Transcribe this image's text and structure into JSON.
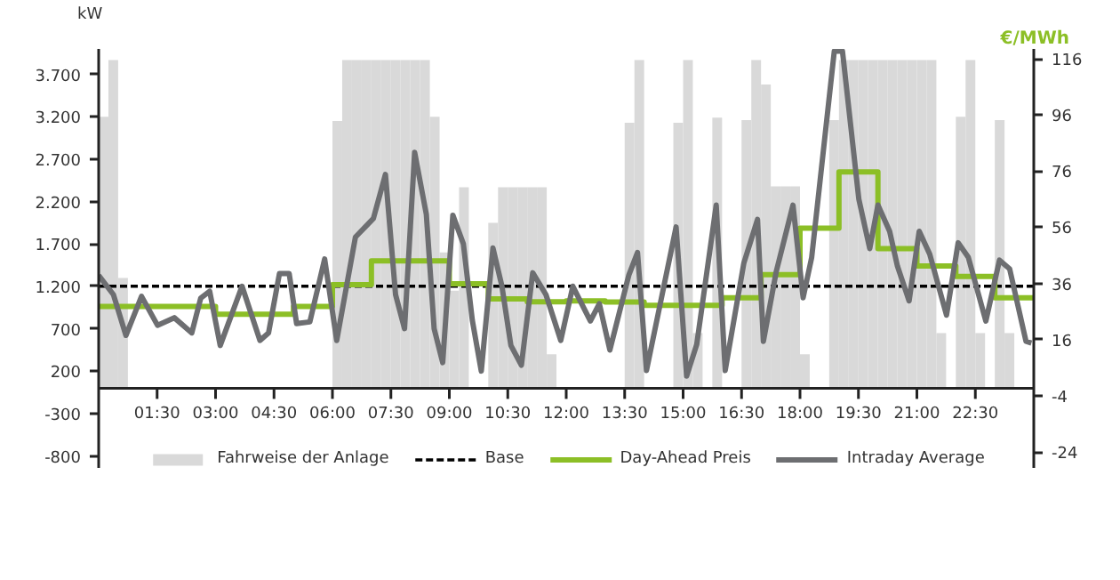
{
  "chart_data": {
    "type": "line",
    "ylabel": "kW",
    "y2label": "€/MWh",
    "xlim": [
      0,
      24
    ],
    "xticks": [
      {
        "value": 1.5,
        "label": "01:30"
      },
      {
        "value": 3,
        "label": "03:00"
      },
      {
        "value": 4.5,
        "label": "04:30"
      },
      {
        "value": 6,
        "label": "06:00"
      },
      {
        "value": 7.5,
        "label": "07:30"
      },
      {
        "value": 9,
        "label": "09:00"
      },
      {
        "value": 10.5,
        "label": "10:30"
      },
      {
        "value": 12,
        "label": "12:00"
      },
      {
        "value": 13.5,
        "label": "13:30"
      },
      {
        "value": 15,
        "label": "15:00"
      },
      {
        "value": 16.5,
        "label": "16:30"
      },
      {
        "value": 18,
        "label": "18:00"
      },
      {
        "value": 19.5,
        "label": "19:30"
      },
      {
        "value": 21,
        "label": "21:00"
      },
      {
        "value": 22.5,
        "label": "22:30"
      }
    ],
    "ylim": [
      -950,
      4000
    ],
    "yticks": [
      {
        "value": -800,
        "label": "-800"
      },
      {
        "value": -300,
        "label": "-300"
      },
      {
        "value": 200,
        "label": "200"
      },
      {
        "value": 700,
        "label": "700"
      },
      {
        "value": 1200,
        "label": "1.200"
      },
      {
        "value": 1700,
        "label": "1.700"
      },
      {
        "value": 2200,
        "label": "2.200"
      },
      {
        "value": 2700,
        "label": "2.700"
      },
      {
        "value": 3200,
        "label": "3.200"
      },
      {
        "value": 3700,
        "label": "3.700"
      }
    ],
    "y2lim": [
      -30,
      119.5
    ],
    "y2ticks": [
      -24,
      -4,
      16,
      36,
      56,
      76,
      96,
      116
    ],
    "grid": false,
    "legend": "bottom",
    "series": [
      {
        "name": "Fahrweise der Anlage",
        "type": "bar",
        "color": "#d9d9d9",
        "x": [
          0.125,
          0.375,
          0.625,
          6.125,
          6.375,
          6.625,
          6.875,
          7.125,
          7.375,
          7.625,
          7.875,
          8.125,
          8.375,
          8.625,
          8.875,
          9.125,
          9.375,
          10.125,
          10.375,
          10.625,
          10.875,
          11.125,
          11.375,
          11.625,
          13.625,
          13.875,
          14.875,
          15.125,
          15.375,
          15.875,
          16.625,
          16.875,
          17.125,
          17.375,
          17.625,
          17.875,
          18.125,
          18.875,
          19.125,
          19.375,
          19.625,
          19.875,
          20.125,
          20.375,
          20.625,
          20.875,
          21.125,
          21.375,
          21.625,
          22.125,
          22.375,
          22.625,
          23.125,
          23.375
        ],
        "values": [
          3200,
          3870,
          1300,
          3150,
          3870,
          3870,
          3870,
          3870,
          3870,
          3870,
          3870,
          3870,
          3870,
          3200,
          1600,
          1150,
          2370,
          1950,
          2370,
          2370,
          2370,
          2370,
          2370,
          400,
          3130,
          3870,
          3130,
          3870,
          650,
          3190,
          3160,
          3870,
          3580,
          2380,
          2380,
          2380,
          400,
          3160,
          3870,
          3870,
          3870,
          3870,
          3870,
          3870,
          3870,
          3870,
          3870,
          3870,
          650,
          3200,
          3870,
          650,
          3160,
          650
        ]
      },
      {
        "name": "Base",
        "type": "line",
        "axis": "y2",
        "color": "#000000",
        "line_style": "dashed",
        "x": [
          0,
          24
        ],
        "values": [
          35,
          35
        ]
      },
      {
        "name": "Day-Ahead Preis",
        "type": "step",
        "axis": "y2",
        "color": "#8cbf26",
        "x": [
          0,
          1,
          2,
          3,
          4,
          5,
          6,
          7,
          8,
          9,
          10,
          11,
          12,
          13,
          14,
          15,
          16,
          17,
          18,
          19,
          20,
          21,
          22,
          23,
          24
        ],
        "values": [
          27.8,
          27.8,
          27.8,
          25.0,
          25.0,
          27.8,
          35.6,
          44.0,
          44.0,
          35.9,
          30.5,
          29.5,
          29.8,
          29.4,
          28.2,
          28.2,
          30.9,
          39.1,
          55.7,
          75.7,
          48.4,
          42.2,
          38.5,
          30.9,
          30.9
        ]
      },
      {
        "name": "Intraday Average",
        "axis": "y2",
        "color": "#6d6e71",
        "x": [
          0.0,
          0.38,
          0.7,
          1.1,
          1.51,
          1.94,
          2.39,
          2.62,
          2.85,
          3.12,
          3.68,
          4.14,
          4.36,
          4.64,
          4.89,
          5.08,
          5.42,
          5.8,
          6.11,
          6.59,
          7.05,
          7.36,
          7.62,
          7.85,
          8.11,
          8.41,
          8.61,
          8.83,
          9.09,
          9.36,
          9.59,
          9.82,
          10.12,
          10.35,
          10.58,
          10.85,
          11.14,
          11.48,
          11.86,
          12.17,
          12.62,
          12.85,
          13.12,
          13.61,
          13.83,
          14.06,
          14.82,
          15.09,
          15.35,
          15.85,
          16.08,
          16.56,
          16.91,
          17.06,
          17.39,
          17.82,
          18.08,
          18.3,
          18.88,
          19.09,
          19.51,
          19.79,
          20.0,
          20.3,
          20.5,
          20.8,
          21.06,
          21.33,
          21.76,
          22.06,
          22.32,
          22.77,
          23.12,
          23.38,
          23.8,
          23.94
        ],
        "values": [
          38.9,
          32.0,
          17.5,
          31.4,
          21.1,
          23.8,
          18.4,
          30.8,
          33.2,
          13.9,
          35.0,
          15.7,
          18.4,
          39.5,
          39.5,
          21.7,
          22.3,
          44.7,
          15.7,
          52.5,
          59.1,
          74.8,
          32.0,
          19.9,
          82.7,
          60.6,
          19.9,
          7.8,
          60.3,
          50.1,
          22.9,
          4.8,
          48.6,
          35.0,
          13.9,
          6.9,
          39.8,
          32.0,
          15.7,
          35.0,
          22.6,
          28.8,
          12.3,
          39.1,
          47.0,
          5.0,
          56.1,
          3.0,
          14.3,
          63.9,
          5.0,
          43.3,
          58.8,
          15.4,
          40.2,
          63.9,
          30.9,
          45.3,
          118.7,
          118.7,
          66.0,
          48.4,
          63.9,
          54.6,
          42.2,
          29.8,
          54.6,
          46.4,
          24.7,
          50.5,
          45.3,
          22.6,
          44.3,
          41.2,
          15.4,
          14.8
        ]
      }
    ]
  }
}
